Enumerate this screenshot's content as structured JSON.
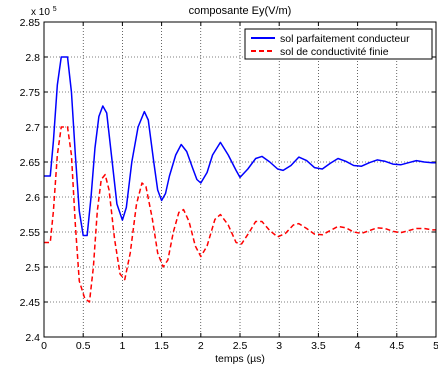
{
  "chart_data": {
    "type": "line",
    "title": "composante Ey(V/m)",
    "xlabel": "temps (µs)",
    "ylabel": "",
    "y_multiplier_label": "x 10",
    "y_multiplier_exponent": "5",
    "xlim": [
      0,
      5
    ],
    "ylim": [
      2.4,
      2.85
    ],
    "xticks": [
      0,
      0.5,
      1,
      1.5,
      2,
      2.5,
      3,
      3.5,
      4,
      4.5,
      5
    ],
    "xtick_labels": [
      "0",
      "0.5",
      "1",
      "1.5",
      "2",
      "2.5",
      "3",
      "3.5",
      "4",
      "4.5",
      "5"
    ],
    "yticks": [
      2.4,
      2.45,
      2.5,
      2.55,
      2.6,
      2.65,
      2.7,
      2.75,
      2.8,
      2.85
    ],
    "ytick_labels": [
      "2.4",
      "2.45",
      "2.5",
      "2.55",
      "2.6",
      "2.65",
      "2.7",
      "2.75",
      "2.8",
      "2.85"
    ],
    "grid": true,
    "legend_position": "top-right",
    "series": [
      {
        "name": "sol parfaitement conducteur",
        "color": "#0000ff",
        "dash": "solid",
        "points": [
          [
            0,
            2.63
          ],
          [
            0.08,
            2.63
          ],
          [
            0.12,
            2.68
          ],
          [
            0.17,
            2.76
          ],
          [
            0.22,
            2.8
          ],
          [
            0.3,
            2.8
          ],
          [
            0.35,
            2.75
          ],
          [
            0.4,
            2.66
          ],
          [
            0.45,
            2.58
          ],
          [
            0.5,
            2.545
          ],
          [
            0.55,
            2.545
          ],
          [
            0.6,
            2.6
          ],
          [
            0.65,
            2.67
          ],
          [
            0.7,
            2.715
          ],
          [
            0.75,
            2.73
          ],
          [
            0.8,
            2.72
          ],
          [
            0.87,
            2.65
          ],
          [
            0.93,
            2.59
          ],
          [
            1.0,
            2.567
          ],
          [
            1.05,
            2.585
          ],
          [
            1.12,
            2.65
          ],
          [
            1.2,
            2.7
          ],
          [
            1.28,
            2.722
          ],
          [
            1.33,
            2.71
          ],
          [
            1.4,
            2.65
          ],
          [
            1.45,
            2.61
          ],
          [
            1.5,
            2.595
          ],
          [
            1.55,
            2.605
          ],
          [
            1.6,
            2.63
          ],
          [
            1.68,
            2.66
          ],
          [
            1.75,
            2.675
          ],
          [
            1.82,
            2.665
          ],
          [
            1.9,
            2.64
          ],
          [
            1.95,
            2.625
          ],
          [
            2.0,
            2.62
          ],
          [
            2.08,
            2.635
          ],
          [
            2.15,
            2.66
          ],
          [
            2.25,
            2.678
          ],
          [
            2.35,
            2.66
          ],
          [
            2.45,
            2.638
          ],
          [
            2.5,
            2.628
          ],
          [
            2.6,
            2.64
          ],
          [
            2.7,
            2.655
          ],
          [
            2.78,
            2.658
          ],
          [
            2.88,
            2.65
          ],
          [
            2.98,
            2.64
          ],
          [
            3.05,
            2.638
          ],
          [
            3.15,
            2.645
          ],
          [
            3.25,
            2.657
          ],
          [
            3.35,
            2.652
          ],
          [
            3.45,
            2.642
          ],
          [
            3.55,
            2.64
          ],
          [
            3.65,
            2.648
          ],
          [
            3.75,
            2.655
          ],
          [
            3.85,
            2.651
          ],
          [
            3.95,
            2.645
          ],
          [
            4.05,
            2.644
          ],
          [
            4.15,
            2.649
          ],
          [
            4.25,
            2.653
          ],
          [
            4.35,
            2.651
          ],
          [
            4.45,
            2.647
          ],
          [
            4.55,
            2.646
          ],
          [
            4.65,
            2.649
          ],
          [
            4.75,
            2.652
          ],
          [
            4.85,
            2.65
          ],
          [
            4.95,
            2.649
          ],
          [
            5.0,
            2.649
          ]
        ]
      },
      {
        "name": "sol de conductivité finie",
        "color": "#ff0000",
        "dash": "dashed",
        "points": [
          [
            0,
            2.535
          ],
          [
            0.08,
            2.535
          ],
          [
            0.12,
            2.58
          ],
          [
            0.17,
            2.66
          ],
          [
            0.22,
            2.7
          ],
          [
            0.3,
            2.7
          ],
          [
            0.35,
            2.66
          ],
          [
            0.4,
            2.56
          ],
          [
            0.45,
            2.48
          ],
          [
            0.52,
            2.455
          ],
          [
            0.58,
            2.45
          ],
          [
            0.63,
            2.5
          ],
          [
            0.68,
            2.58
          ],
          [
            0.73,
            2.625
          ],
          [
            0.78,
            2.632
          ],
          [
            0.83,
            2.61
          ],
          [
            0.9,
            2.54
          ],
          [
            0.97,
            2.49
          ],
          [
            1.03,
            2.482
          ],
          [
            1.1,
            2.52
          ],
          [
            1.18,
            2.59
          ],
          [
            1.25,
            2.62
          ],
          [
            1.3,
            2.615
          ],
          [
            1.38,
            2.57
          ],
          [
            1.45,
            2.52
          ],
          [
            1.52,
            2.5
          ],
          [
            1.58,
            2.51
          ],
          [
            1.65,
            2.55
          ],
          [
            1.72,
            2.578
          ],
          [
            1.78,
            2.582
          ],
          [
            1.85,
            2.565
          ],
          [
            1.93,
            2.53
          ],
          [
            2.0,
            2.515
          ],
          [
            2.08,
            2.53
          ],
          [
            2.18,
            2.568
          ],
          [
            2.25,
            2.575
          ],
          [
            2.35,
            2.56
          ],
          [
            2.45,
            2.535
          ],
          [
            2.52,
            2.533
          ],
          [
            2.62,
            2.55
          ],
          [
            2.7,
            2.565
          ],
          [
            2.78,
            2.565
          ],
          [
            2.88,
            2.552
          ],
          [
            2.98,
            2.543
          ],
          [
            3.08,
            2.548
          ],
          [
            3.18,
            2.56
          ],
          [
            3.25,
            2.562
          ],
          [
            3.35,
            2.555
          ],
          [
            3.45,
            2.547
          ],
          [
            3.55,
            2.546
          ],
          [
            3.65,
            2.552
          ],
          [
            3.75,
            2.558
          ],
          [
            3.85,
            2.556
          ],
          [
            3.95,
            2.55
          ],
          [
            4.05,
            2.548
          ],
          [
            4.15,
            2.552
          ],
          [
            4.25,
            2.556
          ],
          [
            4.35,
            2.555
          ],
          [
            4.45,
            2.551
          ],
          [
            4.55,
            2.549
          ],
          [
            4.65,
            2.552
          ],
          [
            4.75,
            2.555
          ],
          [
            4.85,
            2.555
          ],
          [
            4.95,
            2.553
          ],
          [
            5.0,
            2.553
          ]
        ]
      }
    ]
  }
}
